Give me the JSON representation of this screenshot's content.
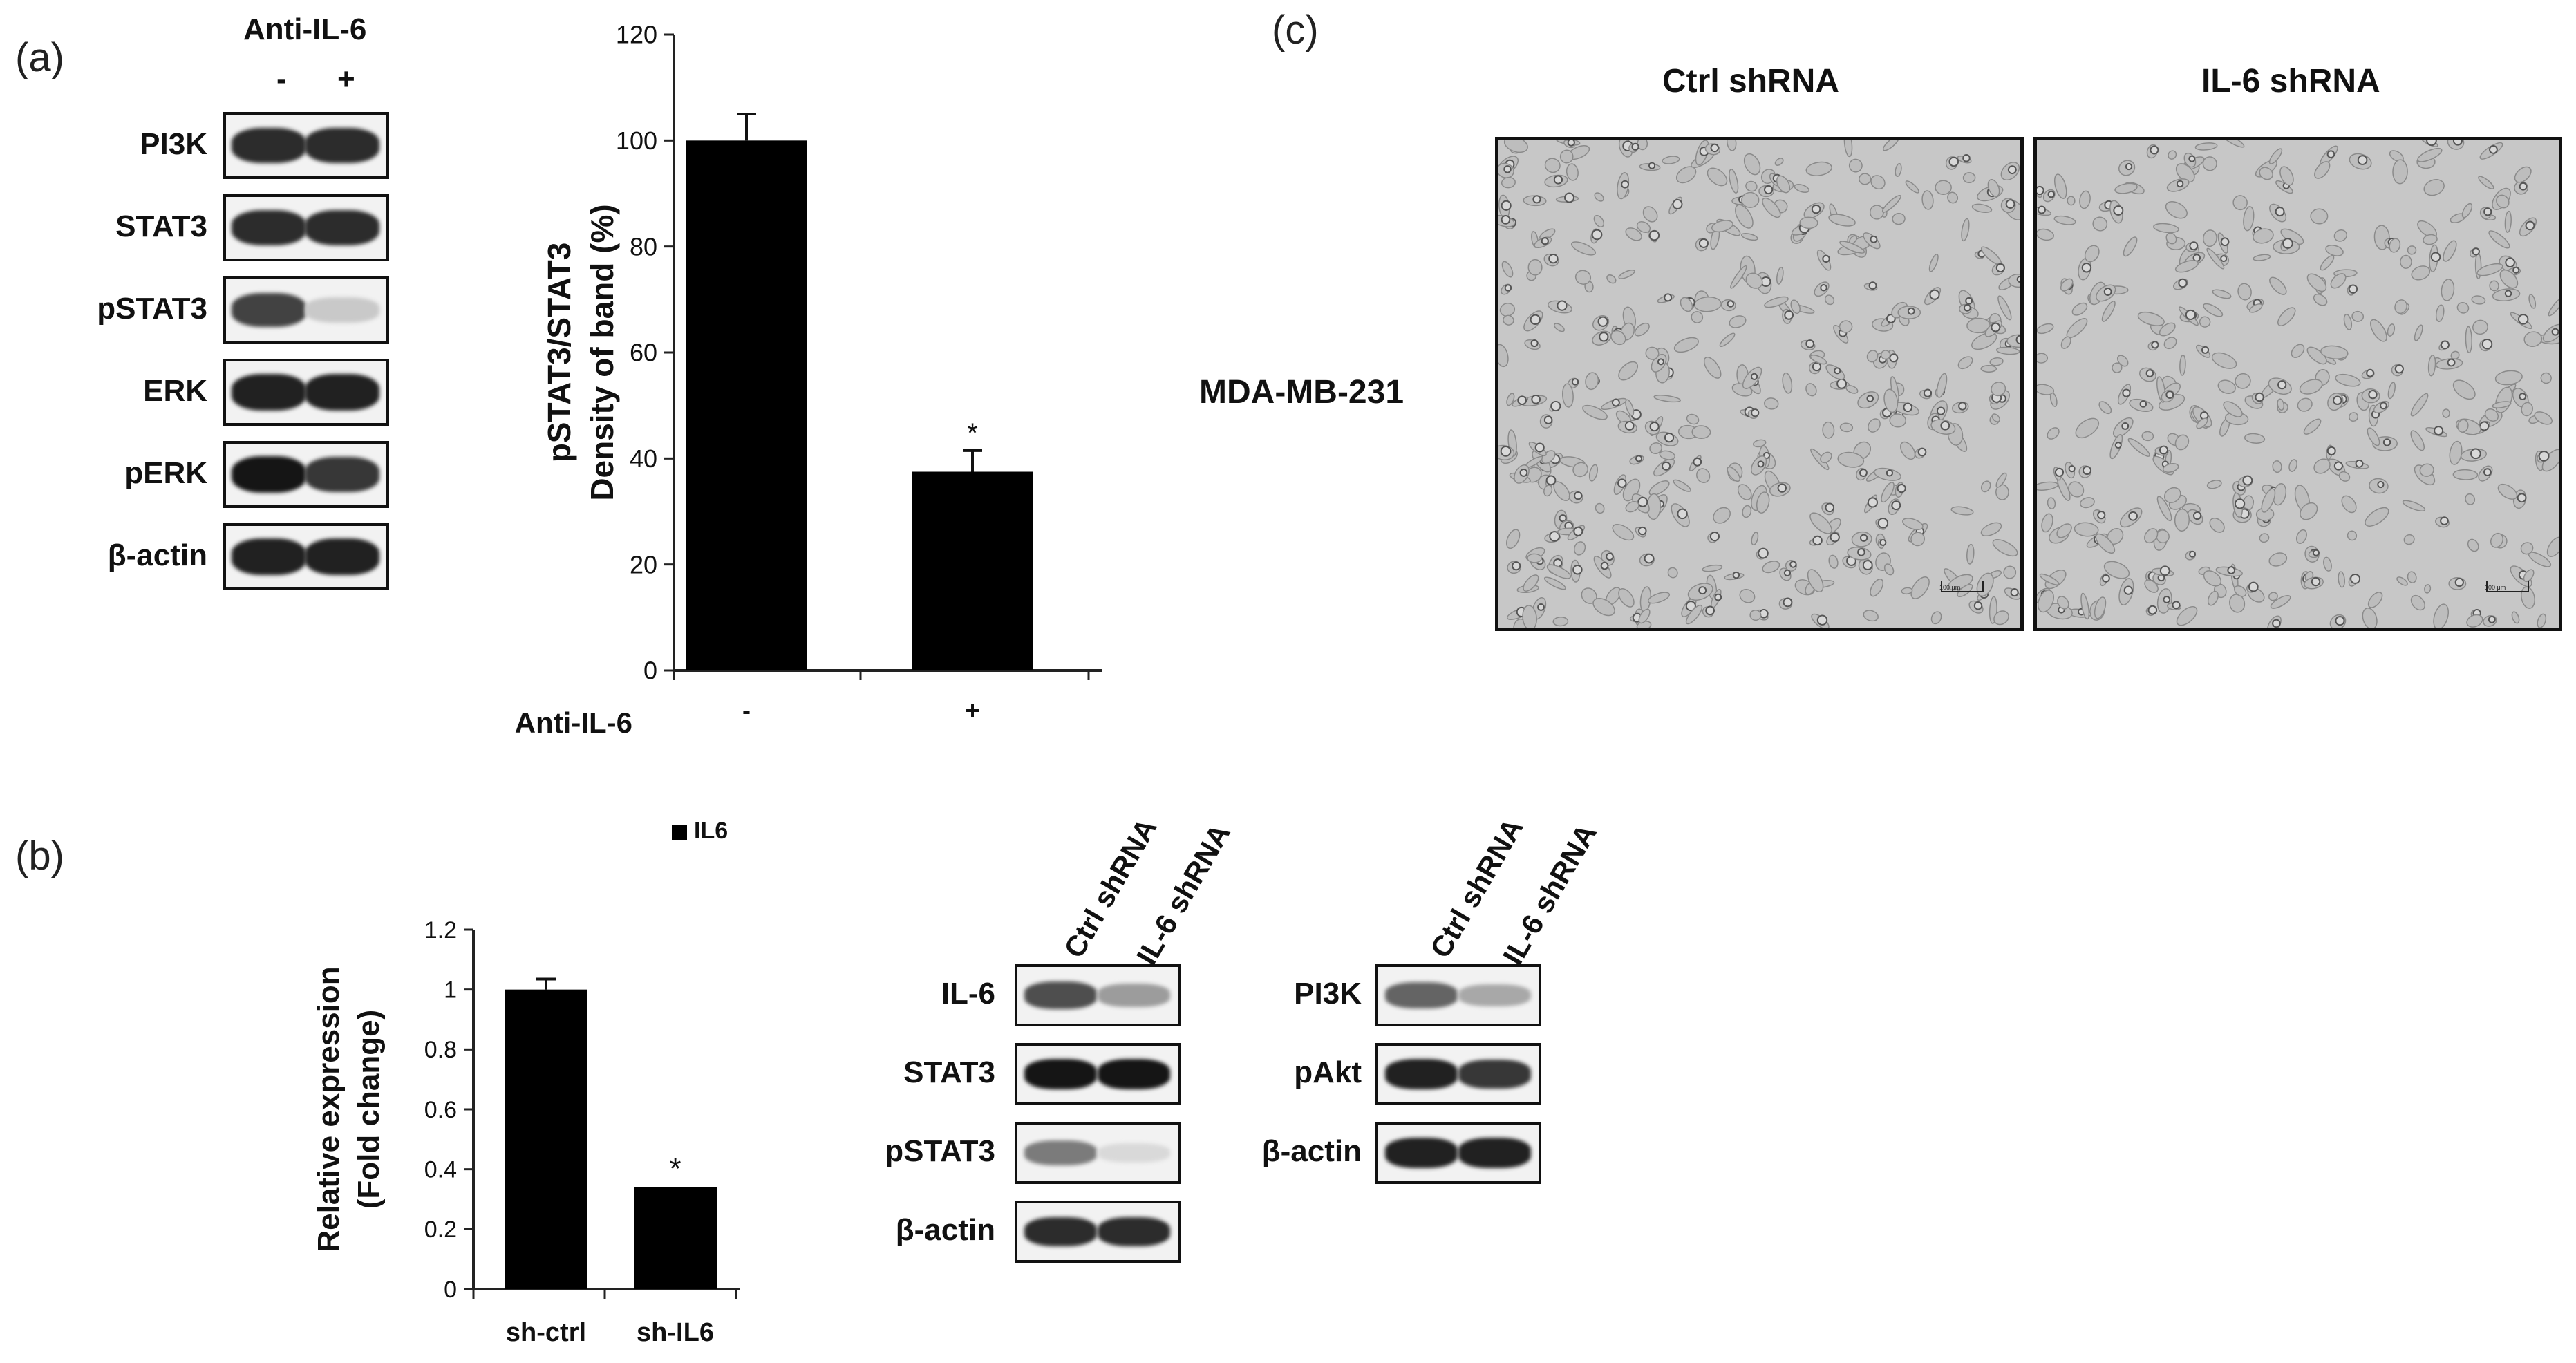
{
  "panel_a": {
    "letter": "(a)",
    "treatment_header": "Anti-IL-6",
    "lane_signs": [
      "-",
      "+"
    ],
    "blot_rows": [
      {
        "label": "PI3K",
        "bands": [
          0.85,
          0.85
        ]
      },
      {
        "label": "STAT3",
        "bands": [
          0.85,
          0.85
        ]
      },
      {
        "label": "pSTAT3",
        "bands": [
          0.75,
          0.15
        ]
      },
      {
        "label": "ERK",
        "bands": [
          0.9,
          0.9
        ]
      },
      {
        "label": "pERK",
        "bands": [
          0.95,
          0.8
        ]
      },
      {
        "label": "β-actin",
        "bands": [
          0.9,
          0.9
        ]
      }
    ],
    "chart_x_label": "Anti-IL-6"
  },
  "panel_b": {
    "letter": "(b)",
    "blot_lane_labels": [
      "Ctrl shRNA",
      "IL-6 shRNA"
    ],
    "blot_left_rows": [
      {
        "label": "IL-6",
        "bands": [
          0.7,
          0.35
        ]
      },
      {
        "label": "STAT3",
        "bands": [
          0.95,
          0.95
        ]
      },
      {
        "label": "pSTAT3",
        "bands": [
          0.5,
          0.08
        ]
      },
      {
        "label": "β-actin",
        "bands": [
          0.85,
          0.85
        ]
      }
    ],
    "blot_right_rows": [
      {
        "label": "PI3K",
        "bands": [
          0.6,
          0.3
        ]
      },
      {
        "label": "pAkt",
        "bands": [
          0.9,
          0.8
        ]
      },
      {
        "label": "β-actin",
        "bands": [
          0.9,
          0.9
        ]
      }
    ]
  },
  "panel_c": {
    "letter": "(c)",
    "column_titles": [
      "Ctrl shRNA",
      "IL-6 shRNA"
    ],
    "row_label": "MDA-MB-231",
    "scale_bar_text": "100 μm"
  },
  "chart_data": [
    {
      "type": "bar",
      "categories": [
        "-",
        "+"
      ],
      "values": [
        100,
        37.5
      ],
      "errors": [
        5,
        4
      ],
      "significance": [
        "",
        "*"
      ],
      "ylabel": "pSTAT3/STAT3\nDensity of band (%)",
      "ylabel_lines": [
        "pSTAT3/STAT3",
        "Density of band (%)"
      ],
      "xlabel": "Anti-IL-6",
      "ylim": [
        0,
        120
      ],
      "yticks": [
        0,
        20,
        40,
        60,
        80,
        100,
        120
      ],
      "color": "#000000"
    },
    {
      "type": "bar",
      "categories": [
        "sh-ctrl",
        "sh-IL6"
      ],
      "series": [
        {
          "name": "IL6",
          "values": [
            1.0,
            0.34
          ]
        }
      ],
      "errors": [
        0.035,
        0
      ],
      "significance": [
        "",
        "*"
      ],
      "ylabel_lines": [
        "Relative expression",
        "(Fold change)"
      ],
      "ylim": [
        0,
        1.2
      ],
      "yticks": [
        0,
        0.2,
        0.4,
        0.6,
        0.8,
        1,
        1.2
      ],
      "legend_position": "top-right",
      "color": "#000000"
    }
  ]
}
